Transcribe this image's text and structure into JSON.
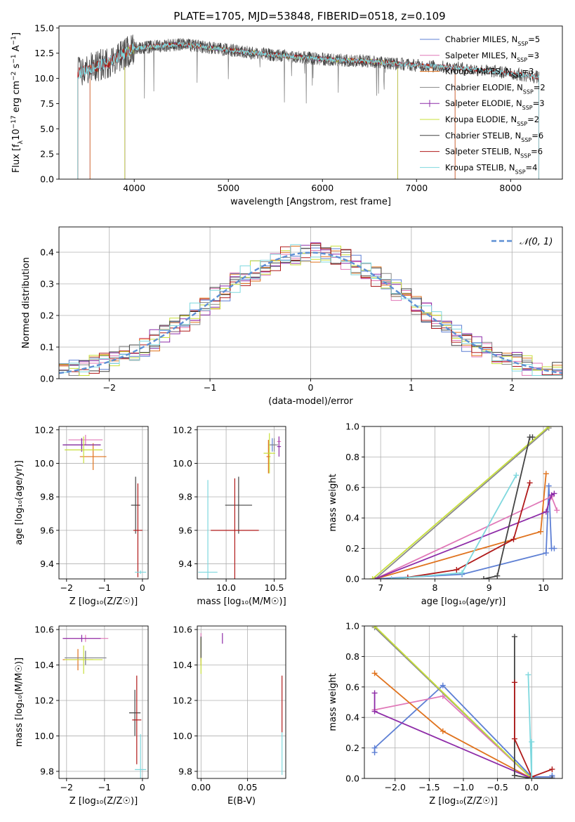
{
  "figure_title": "PLATE=1705, MJD=53848, FIBERID=0518, z=0.109",
  "chart_data": [
    {
      "id": "spectrum",
      "type": "line",
      "title": "PLATE=1705, MJD=53848, FIBERID=0518, z=0.109",
      "xlabel": "wavelength [Angstrom, rest frame]",
      "ylabel_parts": [
        "Flux [f",
        "λ",
        "10",
        "−17",
        " erg cm",
        "−2",
        " s",
        "−1",
        " A",
        "−1",
        "]"
      ],
      "xlim": [
        3200,
        8550
      ],
      "ylim": [
        0,
        15.2
      ],
      "xticks": [
        4000,
        5000,
        6000,
        7000,
        8000
      ],
      "yticks": [
        0.0,
        2.5,
        5.0,
        7.5,
        10.0,
        12.5,
        15.0
      ],
      "grid": false,
      "legend_position": "top-right",
      "continuum": {
        "x": [
          3400,
          3700,
          4000,
          4500,
          5000,
          5500,
          6000,
          6500,
          7000,
          7500,
          8000,
          8300
        ],
        "y": [
          10.5,
          11.5,
          13.0,
          13.4,
          12.8,
          12.3,
          11.9,
          11.7,
          11.3,
          11.0,
          10.5,
          10.1
        ]
      },
      "series": [
        {
          "name": "Chabrier MILES, N",
          "sub": "SSP",
          "tail": "=5",
          "color": "#5d7fd4",
          "xrange": [
            3530,
            7410
          ]
        },
        {
          "name": "Salpeter MILES, N",
          "sub": "SSP",
          "tail": "=3",
          "color": "#e078b8",
          "xrange": [
            3530,
            7410
          ]
        },
        {
          "name": "Kroupa MILES, N",
          "sub": "SSP",
          "tail": "=3",
          "color": "#e0731e",
          "xrange": [
            3530,
            7410
          ]
        },
        {
          "name": "Chabrier ELODIE, N",
          "sub": "SSP",
          "tail": "=2",
          "color": "#8a8a8a",
          "xrange": [
            3900,
            6800
          ]
        },
        {
          "name": "Salpeter ELODIE, N",
          "sub": "SSP",
          "tail": "=3",
          "color": "#8e2ca8",
          "xrange": [
            3900,
            6800
          ]
        },
        {
          "name": "Kroupa ELODIE, N",
          "sub": "SSP",
          "tail": "=2",
          "color": "#c8e03a",
          "xrange": [
            3900,
            6800
          ]
        },
        {
          "name": "Chabrier STELIB, N",
          "sub": "SSP",
          "tail": "=6",
          "color": "#444444",
          "xrange": [
            3400,
            8300
          ]
        },
        {
          "name": "Salpeter STELIB, N",
          "sub": "SSP",
          "tail": "=6",
          "color": "#b01a1a",
          "xrange": [
            3400,
            8300
          ]
        },
        {
          "name": "Kroupa STELIB, N",
          "sub": "SSP",
          "tail": "=4",
          "color": "#7fd8de",
          "xrange": [
            3400,
            8300
          ]
        }
      ]
    },
    {
      "id": "residuals",
      "type": "line",
      "xlabel": "(data-model)/error",
      "ylabel": "Normed distribution",
      "xlim": [
        -2.5,
        2.5
      ],
      "ylim": [
        0,
        0.48
      ],
      "xticks": [
        -2,
        -1,
        0,
        1,
        2
      ],
      "yticks": [
        0.0,
        0.1,
        0.2,
        0.3,
        0.4
      ],
      "grid": true,
      "legend_position": "top-right",
      "gaussian_label": "𝒩(0, 1)",
      "gaussian_color": "#5d8fd4",
      "bin_width": 0.1,
      "hist_colors": [
        "#5d7fd4",
        "#e078b8",
        "#e0731e",
        "#8a8a8a",
        "#8e2ca8",
        "#c8e03a",
        "#444444",
        "#b01a1a",
        "#7fd8de"
      ]
    },
    {
      "id": "age-vs-Z",
      "type": "scatter",
      "xlabel": "Z [log₁₀(Z/Z☉)]",
      "ylabel": "age  [log₁₀(age/yr)]",
      "xlim": [
        -2.2,
        0.15
      ],
      "ylim": [
        9.31,
        10.22
      ],
      "xticks": [
        -2,
        -1,
        0
      ],
      "yticks": [
        9.4,
        9.6,
        9.8,
        10.0,
        10.2
      ],
      "grid": true,
      "points": [
        {
          "x": -1.6,
          "y": 10.11,
          "xerr": 0.5,
          "yerr": 0.04,
          "color": "#5d7fd4"
        },
        {
          "x": -1.5,
          "y": 10.14,
          "xerr": 0.45,
          "yerr": 0.03,
          "color": "#e078b8"
        },
        {
          "x": -1.3,
          "y": 10.04,
          "xerr": 0.35,
          "yerr": 0.08,
          "color": "#e0731e"
        },
        {
          "x": -1.6,
          "y": 10.11,
          "xerr": 0.5,
          "yerr": 0.04,
          "color": "#8a8a8a"
        },
        {
          "x": -1.6,
          "y": 10.11,
          "xerr": 0.5,
          "yerr": 0.04,
          "color": "#8e2ca8"
        },
        {
          "x": -1.55,
          "y": 10.08,
          "xerr": 0.5,
          "yerr": 0.08,
          "color": "#c8e03a"
        },
        {
          "x": -0.18,
          "y": 9.75,
          "xerr": 0.12,
          "yerr": 0.17,
          "color": "#444444"
        },
        {
          "x": -0.12,
          "y": 9.6,
          "xerr": 0.12,
          "yerr": 0.28,
          "color": "#b01a1a"
        },
        {
          "x": -0.05,
          "y": 9.35,
          "xerr": 0.15,
          "yerr": 0.01,
          "color": "#7fd8de"
        }
      ]
    },
    {
      "id": "age-vs-mass",
      "type": "scatter",
      "xlabel": "mass [log₁₀(M/M☉)]",
      "ylabel": "",
      "xlim": [
        9.7,
        10.62
      ],
      "ylim": [
        9.31,
        10.22
      ],
      "xticks": [
        10.0,
        10.5
      ],
      "yticks": [
        9.4,
        9.6,
        9.8,
        10.0,
        10.2
      ],
      "grid": true,
      "points": [
        {
          "x": 10.48,
          "y": 10.11,
          "xerr": 0.04,
          "yerr": 0.04,
          "color": "#5d7fd4"
        },
        {
          "x": 10.55,
          "y": 10.13,
          "xerr": 0.02,
          "yerr": 0.03,
          "color": "#e078b8"
        },
        {
          "x": 10.44,
          "y": 10.04,
          "xerr": 0.02,
          "yerr": 0.1,
          "color": "#e0731e"
        },
        {
          "x": 10.5,
          "y": 10.11,
          "xerr": 0.04,
          "yerr": 0.04,
          "color": "#8a8a8a"
        },
        {
          "x": 10.55,
          "y": 10.1,
          "xerr": 0.02,
          "yerr": 0.06,
          "color": "#8e2ca8"
        },
        {
          "x": 10.45,
          "y": 10.06,
          "xerr": 0.06,
          "yerr": 0.12,
          "color": "#c8e03a"
        },
        {
          "x": 10.13,
          "y": 9.75,
          "xerr": 0.14,
          "yerr": 0.17,
          "color": "#444444"
        },
        {
          "x": 10.09,
          "y": 9.6,
          "xerr": 0.25,
          "yerr": 0.31,
          "color": "#b01a1a"
        },
        {
          "x": 9.81,
          "y": 9.35,
          "xerr": 0.1,
          "yerr": 0.55,
          "color": "#7fd8de"
        }
      ]
    },
    {
      "id": "mass-weight-vs-age",
      "type": "line",
      "xlabel": "age  [log₁₀(age/yr)]",
      "ylabel": "mass weight",
      "xlim": [
        6.7,
        10.35
      ],
      "ylim": [
        0,
        1.0
      ],
      "xticks": [
        7,
        8,
        9,
        10
      ],
      "yticks": [
        0.0,
        0.2,
        0.4,
        0.6,
        0.8,
        1.0
      ],
      "grid": true,
      "series": [
        {
          "color": "#5d7fd4",
          "x": [
            6.9,
            8.5,
            10.05,
            10.1,
            10.15,
            10.2
          ],
          "y": [
            0.0,
            0.03,
            0.17,
            0.61,
            0.2,
            0.2
          ]
        },
        {
          "color": "#e078b8",
          "x": [
            6.9,
            10.15,
            10.25
          ],
          "y": [
            0.0,
            0.54,
            0.45
          ]
        },
        {
          "color": "#e0731e",
          "x": [
            6.9,
            9.95,
            10.05
          ],
          "y": [
            0.0,
            0.31,
            0.69
          ]
        },
        {
          "color": "#8a8a8a",
          "x": [
            6.9,
            10.1
          ],
          "y": [
            0.0,
            0.99
          ]
        },
        {
          "color": "#8e2ca8",
          "x": [
            6.9,
            10.05,
            10.15,
            10.2
          ],
          "y": [
            0.0,
            0.44,
            0.55,
            0.56
          ]
        },
        {
          "color": "#c8e03a",
          "x": [
            6.85,
            10.1
          ],
          "y": [
            0.0,
            1.0
          ]
        },
        {
          "color": "#444444",
          "x": [
            8.9,
            9.15,
            9.75,
            9.8
          ],
          "y": [
            0.0,
            0.02,
            0.93,
            0.93
          ]
        },
        {
          "color": "#b01a1a",
          "x": [
            7.5,
            8.4,
            9.45,
            9.75
          ],
          "y": [
            0.01,
            0.06,
            0.26,
            0.63
          ]
        },
        {
          "color": "#7fd8de",
          "x": [
            7.2,
            8.5,
            9.5
          ],
          "y": [
            0.0,
            0.04,
            0.68
          ]
        }
      ]
    },
    {
      "id": "mass-vs-Z",
      "type": "scatter",
      "xlabel": "Z [log₁₀(Z/Z☉)]",
      "ylabel": "mass [log₁₀(M/M☉)]",
      "xlim": [
        -2.2,
        0.15
      ],
      "ylim": [
        9.76,
        10.62
      ],
      "xticks": [
        -2,
        -1,
        0
      ],
      "yticks": [
        9.8,
        10.0,
        10.2,
        10.4,
        10.6
      ],
      "grid": true,
      "points": [
        {
          "x": -1.5,
          "y": 10.44,
          "xerr": 0.55,
          "yerr": 0.04,
          "color": "#5d7fd4"
        },
        {
          "x": -1.5,
          "y": 10.55,
          "xerr": 0.6,
          "yerr": 0.02,
          "color": "#e078b8"
        },
        {
          "x": -1.7,
          "y": 10.43,
          "xerr": 0.4,
          "yerr": 0.06,
          "color": "#e0731e"
        },
        {
          "x": -1.5,
          "y": 10.44,
          "xerr": 0.55,
          "yerr": 0.04,
          "color": "#8a8a8a"
        },
        {
          "x": -1.6,
          "y": 10.55,
          "xerr": 0.5,
          "yerr": 0.02,
          "color": "#8e2ca8"
        },
        {
          "x": -1.55,
          "y": 10.43,
          "xerr": 0.5,
          "yerr": 0.08,
          "color": "#c8e03a"
        },
        {
          "x": -0.2,
          "y": 10.13,
          "xerr": 0.15,
          "yerr": 0.13,
          "color": "#444444"
        },
        {
          "x": -0.15,
          "y": 10.09,
          "xerr": 0.12,
          "yerr": 0.25,
          "color": "#b01a1a"
        },
        {
          "x": -0.05,
          "y": 9.81,
          "xerr": 0.15,
          "yerr": 0.2,
          "color": "#7fd8de"
        }
      ]
    },
    {
      "id": "mass-vs-ebv",
      "type": "scatter",
      "xlabel": "E(B-V)",
      "ylabel": "",
      "xlim": [
        -0.004,
        0.091
      ],
      "ylim": [
        9.76,
        10.62
      ],
      "xticks": [
        0.0,
        0.05
      ],
      "yticks": [
        9.8,
        10.0,
        10.2,
        10.4,
        10.6
      ],
      "grid": true,
      "points": [
        {
          "x": 0.0,
          "y": 10.48,
          "xerr": 0,
          "yerr": 0.06,
          "color": "#5d7fd4"
        },
        {
          "x": 0.0,
          "y": 10.55,
          "xerr": 0,
          "yerr": 0.03,
          "color": "#e078b8"
        },
        {
          "x": 0.0,
          "y": 10.45,
          "xerr": 0,
          "yerr": 0.05,
          "color": "#e0731e"
        },
        {
          "x": 0.0,
          "y": 10.5,
          "xerr": 0,
          "yerr": 0.05,
          "color": "#8a8a8a"
        },
        {
          "x": 0.023,
          "y": 10.55,
          "xerr": 0,
          "yerr": 0.03,
          "color": "#8e2ca8"
        },
        {
          "x": 0.0,
          "y": 10.45,
          "xerr": 0,
          "yerr": 0.1,
          "color": "#c8e03a"
        },
        {
          "x": 0.0,
          "y": 10.5,
          "xerr": 0,
          "yerr": 0.06,
          "color": "#444444"
        },
        {
          "x": 0.087,
          "y": 10.18,
          "xerr": 0,
          "yerr": 0.16,
          "color": "#b01a1a"
        },
        {
          "x": 0.087,
          "y": 9.9,
          "xerr": 0,
          "yerr": 0.12,
          "color": "#7fd8de"
        }
      ]
    },
    {
      "id": "mass-weight-vs-Z",
      "type": "line",
      "xlabel": "Z [log₁₀(Z/Z☉)]",
      "ylabel": "mass weight",
      "xlim": [
        -2.45,
        0.45
      ],
      "ylim": [
        0,
        1.0
      ],
      "xticks": [
        -2.0,
        -1.5,
        -1.0,
        -0.5,
        0.0
      ],
      "yticks": [
        0.0,
        0.2,
        0.4,
        0.6,
        0.8,
        1.0
      ],
      "grid": true,
      "series": [
        {
          "color": "#5d7fd4",
          "x": [
            -2.3,
            -2.3,
            -1.3,
            0.0,
            0.3,
            0.3
          ],
          "y": [
            0.17,
            0.2,
            0.61,
            0.01,
            0.01,
            0.02
          ]
        },
        {
          "color": "#e078b8",
          "x": [
            -2.3,
            -1.3,
            0.0
          ],
          "y": [
            0.45,
            0.54,
            0.0
          ]
        },
        {
          "color": "#e0731e",
          "x": [
            -2.3,
            -1.3,
            0.0
          ],
          "y": [
            0.69,
            0.31,
            0.0
          ]
        },
        {
          "color": "#8a8a8a",
          "x": [
            -2.3,
            0.0
          ],
          "y": [
            0.99,
            0.0
          ]
        },
        {
          "color": "#8e2ca8",
          "x": [
            -2.3,
            -2.3,
            0.0
          ],
          "y": [
            0.56,
            0.44,
            0.0
          ]
        },
        {
          "color": "#c8e03a",
          "x": [
            -2.3,
            0.0
          ],
          "y": [
            1.0,
            0.0
          ]
        },
        {
          "color": "#444444",
          "x": [
            -0.25,
            -0.25,
            0.0,
            0.3
          ],
          "y": [
            0.93,
            0.02,
            0.0,
            0.0
          ]
        },
        {
          "color": "#b01a1a",
          "x": [
            -0.25,
            -0.25,
            0.0,
            0.3
          ],
          "y": [
            0.63,
            0.26,
            0.01,
            0.06
          ]
        },
        {
          "color": "#7fd8de",
          "x": [
            -0.05,
            0.0,
            0.0
          ],
          "y": [
            0.68,
            0.0,
            0.24
          ]
        }
      ]
    }
  ]
}
